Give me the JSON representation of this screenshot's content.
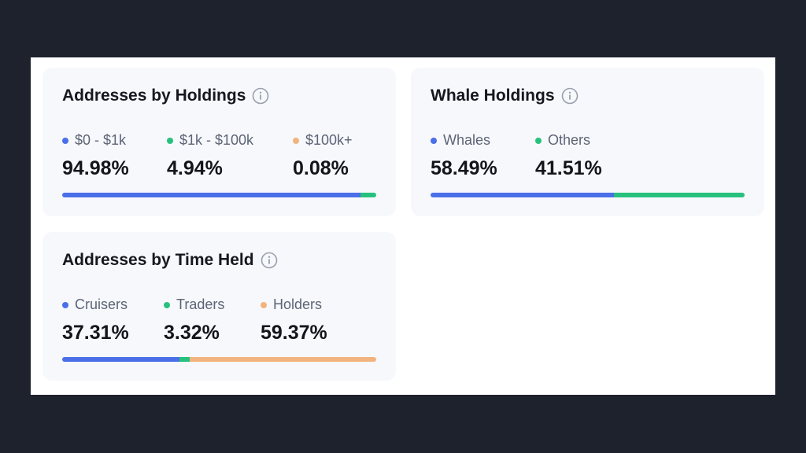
{
  "colors": {
    "blue": "#4b6fe8",
    "green": "#27c17e",
    "orange": "#f2b37e"
  },
  "info_icon": "info-circle-icon",
  "cards": [
    {
      "title": "Addresses by Holdings",
      "items": [
        {
          "label": "$0 - $1k",
          "value": "94.98%",
          "pct": 94.98,
          "color": "blue"
        },
        {
          "label": "$1k - $100k",
          "value": "4.94%",
          "pct": 4.94,
          "color": "green"
        },
        {
          "label": "$100k+",
          "value": "0.08%",
          "pct": 0.08,
          "color": "orange"
        }
      ]
    },
    {
      "title": "Whale Holdings",
      "items": [
        {
          "label": "Whales",
          "value": "58.49%",
          "pct": 58.49,
          "color": "blue"
        },
        {
          "label": "Others",
          "value": "41.51%",
          "pct": 41.51,
          "color": "green"
        }
      ]
    },
    {
      "title": "Addresses by Time Held",
      "items": [
        {
          "label": "Cruisers",
          "value": "37.31%",
          "pct": 37.31,
          "color": "blue"
        },
        {
          "label": "Traders",
          "value": "3.32%",
          "pct": 3.32,
          "color": "green"
        },
        {
          "label": "Holders",
          "value": "59.37%",
          "pct": 59.37,
          "color": "orange"
        }
      ]
    }
  ]
}
